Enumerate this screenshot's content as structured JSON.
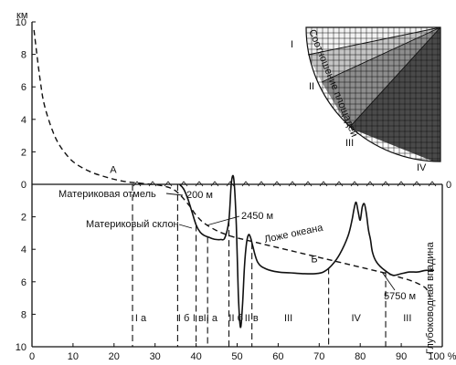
{
  "chart_data": {
    "type": "line",
    "x_axis": {
      "unit": "%",
      "range": [
        0,
        100
      ],
      "ticks": [
        0,
        10,
        20,
        30,
        40,
        50,
        60,
        70,
        80,
        90,
        100
      ],
      "tick_labels": [
        "0",
        "10",
        "20",
        "30",
        "40",
        "50",
        "60",
        "70",
        "80",
        "90",
        "100 %"
      ]
    },
    "y_axis": {
      "unit": "км",
      "range": [
        -10,
        10
      ],
      "ticks": [
        10,
        8,
        6,
        4,
        2,
        0,
        2,
        4,
        6,
        8,
        10
      ],
      "tick_labels": [
        "10",
        "8",
        "6",
        "4",
        "2",
        "0",
        "2",
        "4",
        "6",
        "8",
        "10"
      ],
      "right_zero_label": "0",
      "grid": false
    },
    "series": [
      {
        "name": "А",
        "style": "dashed",
        "x": [
          0.5,
          1,
          2,
          3,
          5,
          7,
          10,
          14,
          18,
          22,
          25,
          28,
          32,
          35,
          38,
          40,
          42,
          45,
          48,
          50,
          55,
          60,
          65,
          70,
          75,
          80,
          85,
          88,
          90,
          92,
          94,
          96,
          97
        ],
        "y": [
          9.5,
          8.4,
          6.4,
          4.9,
          3.3,
          2.3,
          1.4,
          0.8,
          0.45,
          0.2,
          0.1,
          0.03,
          -0.1,
          -0.4,
          -1.2,
          -1.9,
          -2.4,
          -2.85,
          -3.15,
          -3.3,
          -3.6,
          -3.9,
          -4.2,
          -4.5,
          -4.8,
          -5.1,
          -5.4,
          -5.6,
          -5.75,
          -5.9,
          -6.1,
          -6.4,
          -6.9
        ]
      },
      {
        "name": "Б",
        "style": "solid",
        "x": [
          36,
          37,
          38,
          39,
          40,
          41,
          42,
          43,
          44,
          45,
          46,
          47,
          48,
          48.6,
          49.2,
          49.8,
          50.3,
          50.8,
          51.3,
          51.8,
          52.3,
          52.8,
          53.3,
          53.8,
          55,
          57,
          60,
          63,
          66,
          69,
          71,
          73,
          75,
          77,
          78,
          78.5,
          79,
          79.5,
          80,
          80.5,
          81,
          81.5,
          82,
          82.5,
          83,
          84,
          86,
          88,
          90,
          92,
          94,
          96,
          98
        ],
        "y": [
          0,
          -0.3,
          -0.9,
          -1.7,
          -2.5,
          -2.95,
          -3.15,
          -3.25,
          -3.35,
          -3.4,
          -3.4,
          -3.3,
          -2.2,
          0.1,
          0.3,
          -2.5,
          -6.8,
          -8.8,
          -7.5,
          -5.0,
          -3.6,
          -3.1,
          -3.3,
          -3.8,
          -4.8,
          -5.2,
          -5.4,
          -5.45,
          -5.5,
          -5.5,
          -5.4,
          -5.0,
          -4.3,
          -3.2,
          -2.2,
          -1.5,
          -1.1,
          -1.7,
          -2.2,
          -1.4,
          -1.2,
          -1.8,
          -2.8,
          -3.4,
          -4.2,
          -4.8,
          -5.3,
          -5.6,
          -5.5,
          -5.4,
          -5.4,
          -5.3,
          -5.3
        ]
      }
    ],
    "curve_labels": [
      {
        "text": "А",
        "x": 19,
        "y": 0.7
      },
      {
        "text": "Б",
        "x": 68,
        "y": -4.8
      }
    ],
    "annotations": [
      "Материковая отмель",
      "Материковый склон",
      "Ложе океана",
      "Глубоководная впадина",
      "200 м",
      "2450 м",
      "5750 м"
    ],
    "zones": [
      {
        "label": "I а",
        "x": 26.5
      },
      {
        "label": "I б",
        "x": 37.0
      },
      {
        "label": "I в",
        "x": 40.5
      },
      {
        "label": "II а",
        "x": 43.5
      },
      {
        "label": "II б",
        "x": 49.7
      },
      {
        "label": "II в",
        "x": 53.5
      },
      {
        "label": "III",
        "x": 62.5
      },
      {
        "label": "IV",
        "x": 79.0
      },
      {
        "label": "III",
        "x": 91.5
      }
    ],
    "zone_boundaries": [
      24.5,
      35.5,
      40.0,
      42.8,
      48.0,
      53.6,
      72.3,
      86.2
    ],
    "inset": {
      "title": "Соотношение площадей",
      "labels": [
        "I",
        "II",
        "III",
        "IV"
      ]
    }
  }
}
